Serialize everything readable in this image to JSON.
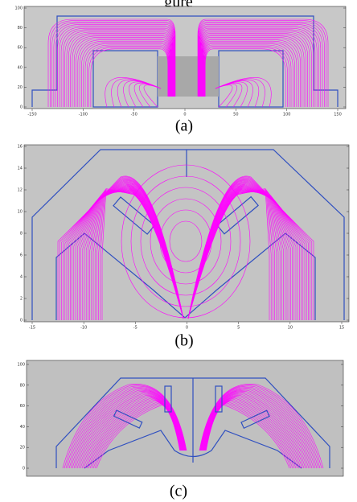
{
  "figure_top_fragment": "gure",
  "panels": [
    {
      "label": "(a)",
      "xticks": [
        -150,
        -100,
        -50,
        0,
        50,
        100,
        150
      ],
      "yticks": [
        0,
        20,
        40,
        60,
        80,
        100
      ]
    },
    {
      "label": "(b)",
      "xticks": [
        -15,
        -10,
        -5,
        0,
        5,
        10,
        15
      ],
      "yticks": [
        0,
        2,
        4,
        6,
        8,
        10,
        12,
        14,
        16
      ]
    },
    {
      "label": "(c)",
      "yticks": [
        0,
        20,
        40,
        60,
        80,
        100
      ]
    }
  ]
}
